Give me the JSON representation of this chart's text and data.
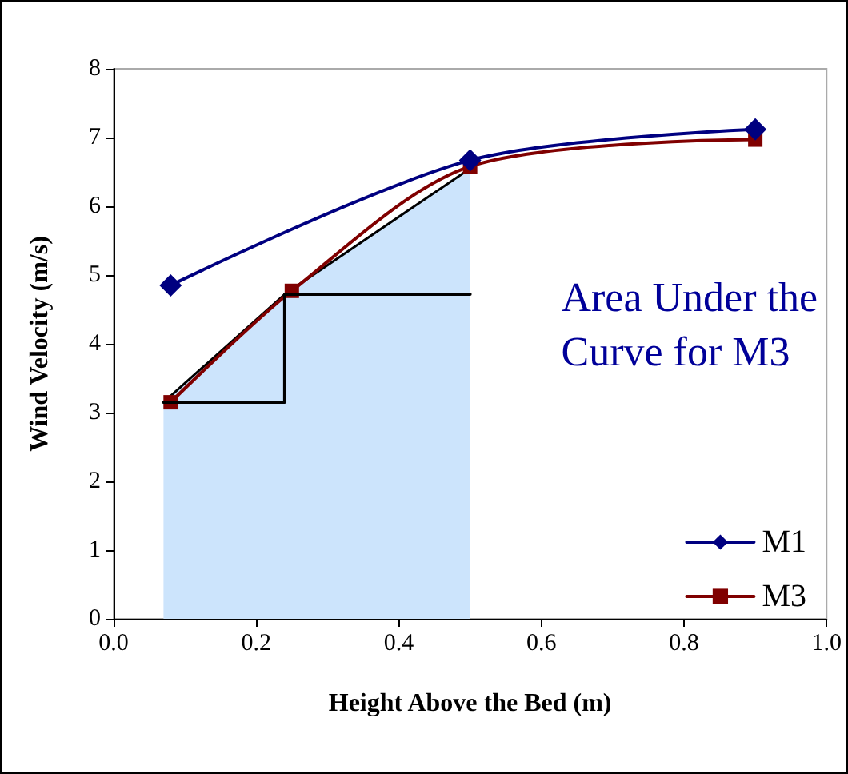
{
  "chart_data": {
    "type": "line",
    "xlabel": "Height Above the Bed (m)",
    "ylabel": "Wind Velocity (m/s)",
    "annotations": [
      "Area Under the Curve for M3"
    ],
    "series": [
      {
        "type": "area",
        "color": "#cce4fc",
        "x": [
          0.07,
          0.24,
          0.5
        ],
        "values": [
          3.15,
          4.72,
          6.55
        ],
        "marker": "none"
      },
      {
        "type": "step",
        "color": "#000000",
        "x": [
          0.07,
          0.24,
          0.5
        ],
        "values": [
          3.15,
          4.72,
          4.72
        ],
        "marker": "none"
      },
      {
        "name": "M1",
        "color": "#000080",
        "x": [
          0.08,
          0.5,
          0.9
        ],
        "values": [
          4.85,
          6.67,
          7.12
        ],
        "marker": "diamond"
      },
      {
        "name": "M3",
        "color": "#800000",
        "x": [
          0.08,
          0.25,
          0.5,
          0.9
        ],
        "values": [
          3.15,
          4.77,
          6.58,
          6.97
        ],
        "marker": "square"
      }
    ],
    "xlim": [
      0,
      1
    ],
    "xticks": [
      {
        "value": 0,
        "label": "0.0"
      },
      {
        "value": 0.2,
        "label": "0.2"
      },
      {
        "value": 0.4,
        "label": "0.4"
      },
      {
        "value": 0.6,
        "label": "0.6"
      },
      {
        "value": 0.8,
        "label": "0.8"
      },
      {
        "value": 1,
        "label": "1.0"
      }
    ],
    "ylim": [
      0,
      8
    ],
    "yticks": [
      0,
      1,
      2,
      3,
      4,
      5,
      6,
      7,
      8
    ],
    "grid": false,
    "legend": "bottom right",
    "line_style": "solid"
  }
}
